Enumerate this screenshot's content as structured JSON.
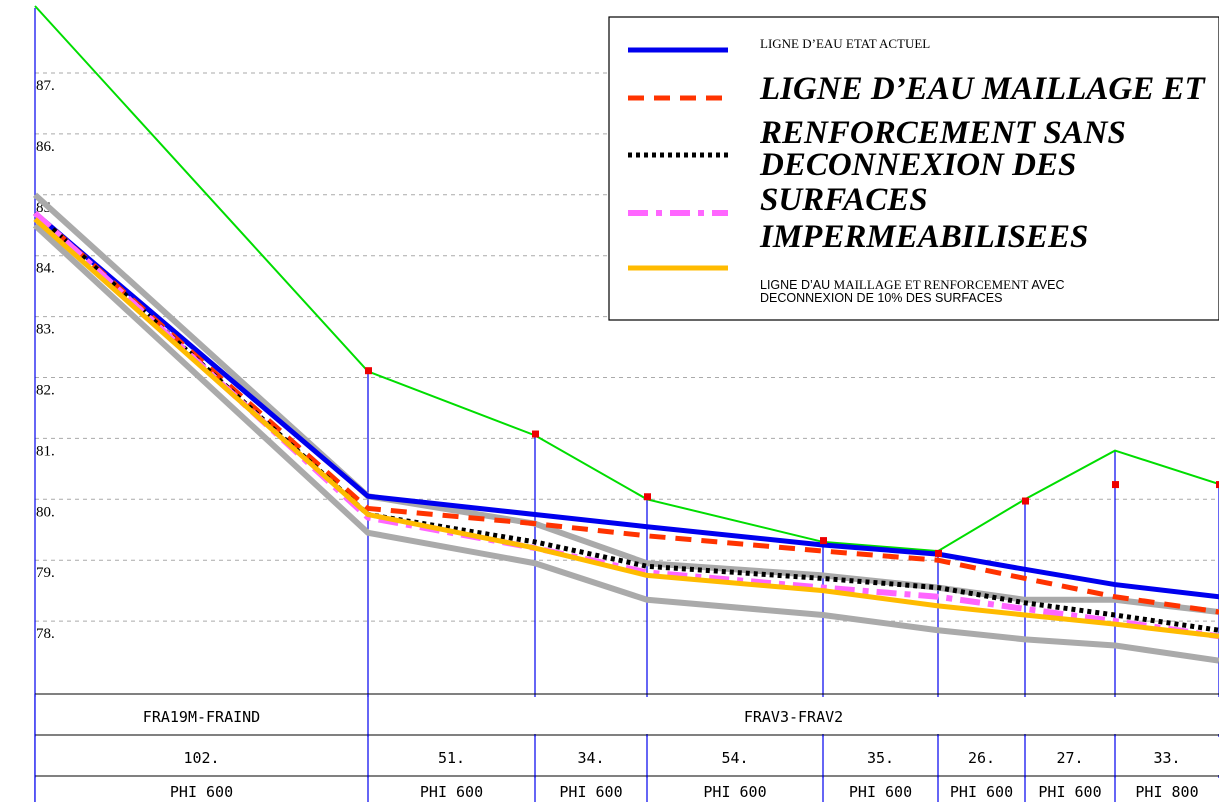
{
  "chart_data": {
    "type": "line",
    "y_ticks": [
      "87.",
      "86.",
      "85.",
      "84.",
      "83.",
      "82.",
      "81.",
      "80.",
      "79.",
      "78."
    ],
    "ylim": [
      77.0,
      88.2
    ],
    "grid": true,
    "nodes_x": [
      0,
      102,
      153,
      187,
      241,
      276,
      302,
      329,
      362
    ],
    "terrain": {
      "color": "#00dd00",
      "points": [
        [
          0,
          88.1
        ],
        [
          102,
          82.1
        ],
        [
          153,
          81.05
        ],
        [
          187,
          80.0
        ],
        [
          241,
          79.3
        ],
        [
          276,
          79.15
        ],
        [
          302,
          80.0
        ],
        [
          329,
          80.8
        ],
        [
          362,
          80.25
        ]
      ]
    },
    "manholes": {
      "color": "#ee0000",
      "points": [
        [
          102,
          82.12
        ],
        [
          153,
          81.08
        ],
        [
          187,
          80.05
        ],
        [
          241,
          79.33
        ],
        [
          276,
          79.12
        ],
        [
          302,
          79.98
        ],
        [
          329,
          80.25
        ],
        [
          362,
          80.25
        ]
      ]
    },
    "pipe_envelope": {
      "color": "#aaaaaa",
      "top": [
        [
          0,
          85.0
        ],
        [
          102,
          80.05
        ],
        [
          153,
          79.6
        ],
        [
          187,
          78.95
        ],
        [
          241,
          78.75
        ],
        [
          276,
          78.55
        ],
        [
          302,
          78.35
        ],
        [
          329,
          78.35
        ],
        [
          362,
          78.15
        ]
      ],
      "bottom": [
        [
          0,
          84.5
        ],
        [
          102,
          79.45
        ],
        [
          153,
          78.95
        ],
        [
          187,
          78.35
        ],
        [
          241,
          78.1
        ],
        [
          276,
          77.85
        ],
        [
          302,
          77.7
        ],
        [
          329,
          77.6
        ],
        [
          362,
          77.35
        ]
      ]
    },
    "series": [
      {
        "name": "LIGNE D’EAU ETAT ACTUEL",
        "color": "#0000ee",
        "dash": "solid",
        "points": [
          [
            0,
            84.7
          ],
          [
            102,
            80.05
          ],
          [
            153,
            79.75
          ],
          [
            187,
            79.55
          ],
          [
            241,
            79.25
          ],
          [
            276,
            79.1
          ],
          [
            302,
            78.85
          ],
          [
            329,
            78.6
          ],
          [
            362,
            78.4
          ]
        ]
      },
      {
        "name": "LIGNE D’EAU MAILLAGE ET RENFORCEMENT SANS DECONNEXION DES SURFACES IMPERMEABILISEES",
        "color": "#ff3300",
        "dash": "dashed",
        "points": [
          [
            0,
            84.7
          ],
          [
            102,
            79.85
          ],
          [
            153,
            79.6
          ],
          [
            187,
            79.4
          ],
          [
            241,
            79.15
          ],
          [
            276,
            79.0
          ],
          [
            302,
            78.7
          ],
          [
            329,
            78.4
          ],
          [
            362,
            78.15
          ]
        ]
      },
      {
        "name": "",
        "color": "#000000",
        "dash": "dotted",
        "points": [
          [
            0,
            84.7
          ],
          [
            102,
            79.75
          ],
          [
            153,
            79.3
          ],
          [
            187,
            78.9
          ],
          [
            241,
            78.7
          ],
          [
            276,
            78.55
          ],
          [
            302,
            78.3
          ],
          [
            329,
            78.1
          ],
          [
            362,
            77.85
          ]
        ]
      },
      {
        "name": "",
        "color": "#ff66ff",
        "dash": "dashdot",
        "points": [
          [
            0,
            84.7
          ],
          [
            102,
            79.7
          ],
          [
            153,
            79.2
          ],
          [
            187,
            78.8
          ],
          [
            241,
            78.55
          ],
          [
            276,
            78.4
          ],
          [
            302,
            78.2
          ],
          [
            329,
            78.0
          ],
          [
            362,
            77.75
          ]
        ]
      },
      {
        "name": "LIGNE D’AU MAILLAGE ET RENFORCEMENT AVEC DECONNEXION DE 10% DES SURFACES",
        "color": "#ffbb00",
        "dash": "solid",
        "points": [
          [
            0,
            84.6
          ],
          [
            102,
            79.75
          ],
          [
            153,
            79.2
          ],
          [
            187,
            78.75
          ],
          [
            241,
            78.5
          ],
          [
            276,
            78.25
          ],
          [
            302,
            78.1
          ],
          [
            329,
            77.95
          ],
          [
            362,
            77.75
          ]
        ]
      }
    ],
    "segments": [
      {
        "label": "FRA19M-FRAIND",
        "from": 0,
        "to": 102
      },
      {
        "label": "FRAV3-FRAV2",
        "from": 102,
        "to": 362
      }
    ],
    "lengths": [
      "102.",
      "51.",
      "34.",
      "54.",
      "35.",
      "26.",
      "27.",
      "33."
    ],
    "pipes": [
      "PHI 600",
      "PHI 600",
      "PHI 600",
      "PHI 600",
      "PHI 600",
      "PHI 600",
      "PHI 600",
      "PHI 800"
    ]
  },
  "legend": {
    "entry1": "LIGNE D’EAU ETAT ACTUEL",
    "big_lines": [
      "LIGNE D’EAU MAILLAGE ET",
      "RENFORCEMENT SANS",
      "DECONNEXION DES",
      "SURFACES",
      "IMPERMEABILISEES"
    ],
    "entry_last_line1_a": "LIGNE D’AU ",
    "entry_last_line1_b": "MAILLAGE ET RENFORCEMENT ",
    "entry_last_line1_c": " AVEC",
    "entry_last_line2": "DECONNEXION DE 10% DES SURFACES"
  }
}
